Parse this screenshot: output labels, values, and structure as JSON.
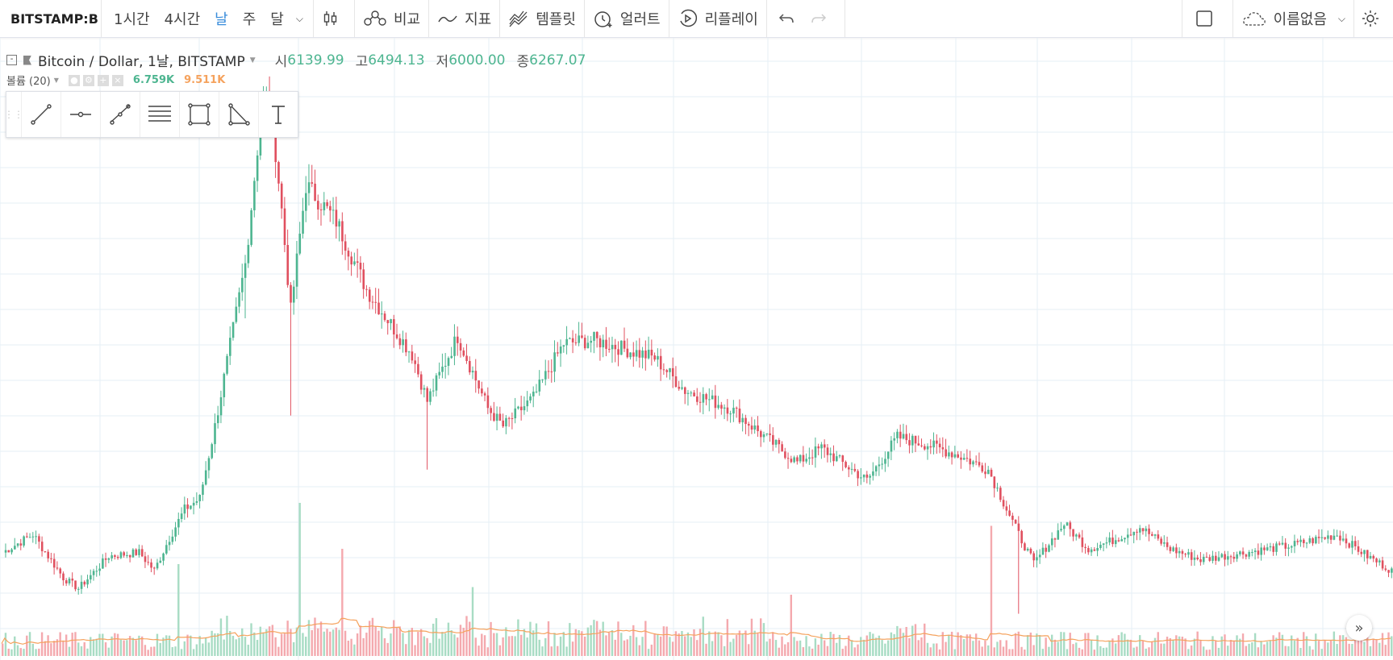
{
  "toolbar": {
    "symbol": "BITSTAMP:B",
    "intervals": [
      "1시간",
      "4시간",
      "날",
      "주",
      "달"
    ],
    "active_interval": "날",
    "compare": "비교",
    "indicators": "지표",
    "templates": "템플릿",
    "alert": "얼러트",
    "replay": "리플레이",
    "layout_name": "이름없음"
  },
  "legend": {
    "title": "Bitcoin / Dollar, 1날, BITSTAMP",
    "open_label": "시",
    "open": "6139.99",
    "high_label": "고",
    "high": "6494.13",
    "low_label": "저",
    "low": "6000.00",
    "close_label": "종",
    "close": "6267.07"
  },
  "volume": {
    "label": "볼륨 (20)",
    "value": "6.759K",
    "ma_value": "9.511K"
  },
  "colors": {
    "up": "#4db590",
    "down": "#e0505f",
    "up_volume": "#a8dcc4",
    "down_volume": "#f4a9ae",
    "volume_ma": "#f5a25d",
    "grid": "#e6eff5",
    "active": "#3a8ddb"
  },
  "icons": [
    "bar-chart-icon",
    "compare-icon",
    "indicators-icon",
    "templates-icon",
    "alert-icon",
    "replay-icon",
    "undo-icon",
    "redo-icon",
    "fullscreen-icon",
    "cloud-icon",
    "settings-icon",
    "trend-line-icon",
    "horizontal-ray-icon",
    "parallel-channel-icon",
    "fib-retracement-icon",
    "rectangle-icon",
    "triangle-icon",
    "text-icon",
    "scroll-right-icon"
  ],
  "chart_data": {
    "type": "candlestick",
    "series": [
      {
        "name": "BITSTAMP:BTCUSD",
        "interval": "1D"
      },
      {
        "name": "Volume",
        "ma_period": 20
      }
    ],
    "price_path": [
      [
        0,
        7000
      ],
      [
        10,
        7500
      ],
      [
        20,
        6300
      ],
      [
        25,
        6000
      ],
      [
        35,
        6900
      ],
      [
        45,
        7000
      ],
      [
        50,
        6500
      ],
      [
        55,
        7400
      ],
      [
        60,
        8200
      ],
      [
        65,
        8500
      ],
      [
        70,
        10500
      ],
      [
        80,
        15000
      ],
      [
        85,
        19000
      ],
      [
        88,
        19800
      ],
      [
        92,
        16500
      ],
      [
        95,
        13700
      ],
      [
        100,
        17200
      ],
      [
        110,
        16200
      ],
      [
        120,
        14300
      ],
      [
        135,
        12500
      ],
      [
        140,
        11200
      ],
      [
        150,
        13000
      ],
      [
        160,
        11000
      ],
      [
        165,
        10500
      ],
      [
        175,
        11300
      ],
      [
        185,
        12800
      ],
      [
        195,
        12900
      ],
      [
        215,
        12400
      ],
      [
        225,
        11500
      ],
      [
        240,
        11000
      ],
      [
        250,
        10300
      ],
      [
        262,
        9500
      ],
      [
        270,
        9900
      ],
      [
        285,
        9000
      ],
      [
        295,
        10200
      ],
      [
        305,
        10000
      ],
      [
        315,
        9700
      ],
      [
        325,
        9300
      ],
      [
        335,
        7500
      ],
      [
        340,
        6700
      ],
      [
        350,
        7800
      ],
      [
        358,
        7100
      ],
      [
        365,
        7300
      ],
      [
        375,
        7700
      ],
      [
        385,
        7100
      ],
      [
        395,
        6800
      ],
      [
        410,
        7000
      ],
      [
        425,
        7200
      ],
      [
        440,
        7500
      ],
      [
        450,
        6900
      ],
      [
        458,
        6500
      ]
    ],
    "extreme_wicks": [
      [
        335,
        5300
      ],
      [
        95,
        10800
      ],
      [
        80,
        13500
      ],
      [
        140,
        9300
      ]
    ],
    "volume_spikes": [
      [
        98,
        1.0
      ],
      [
        112,
        0.7
      ],
      [
        326,
        0.85
      ],
      [
        58,
        0.6
      ],
      [
        155,
        0.45
      ],
      [
        260,
        0.4
      ]
    ]
  }
}
